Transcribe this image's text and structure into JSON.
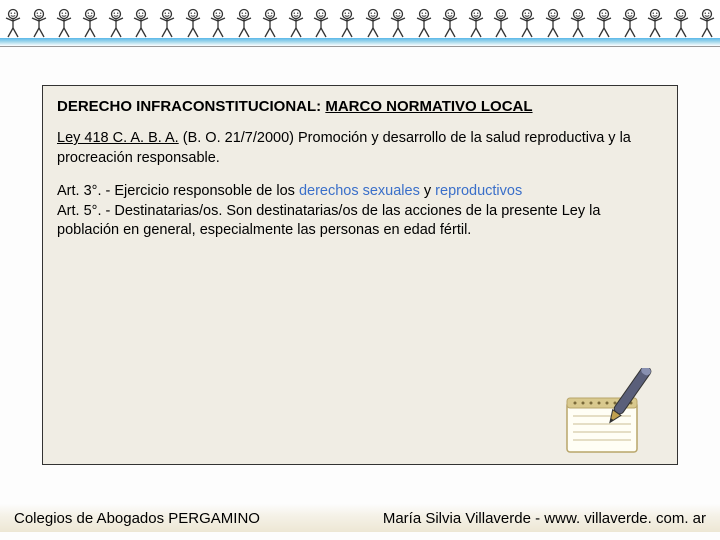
{
  "header": {
    "figure_count": 28
  },
  "box": {
    "title_prefix": "DERECHO INFRACONSTITUCIONAL",
    "title_suffix": "MARCO NORMATIVO LOCAL",
    "law_ref": "Ley 418 C. A. B. A.",
    "law_detail": " (B. O. 21/7/2000) Promoción y desarrollo de la salud reproductiva y la procreación responsable.",
    "art3_prefix": "Art. 3°. - Ejercicio responsoble de los ",
    "art3_hl1": "derechos sexuales",
    "art3_mid": " y ",
    "art3_hl2": "reproductivos",
    "art5": "Art. 5°. - Destinatarias/os. Son destinatarias/os de las acciones de la presente Ley la población en general, especialmente las personas en edad fértil."
  },
  "footer": {
    "left": "Colegios de Abogados PERGAMINO",
    "right": "María Silvia Villaverde  -  www. villaverde. com. ar"
  },
  "colors": {
    "box_bg": "#f0ede4",
    "highlight": "#3a6fc9",
    "gradient_top": "#5bb8e8"
  }
}
